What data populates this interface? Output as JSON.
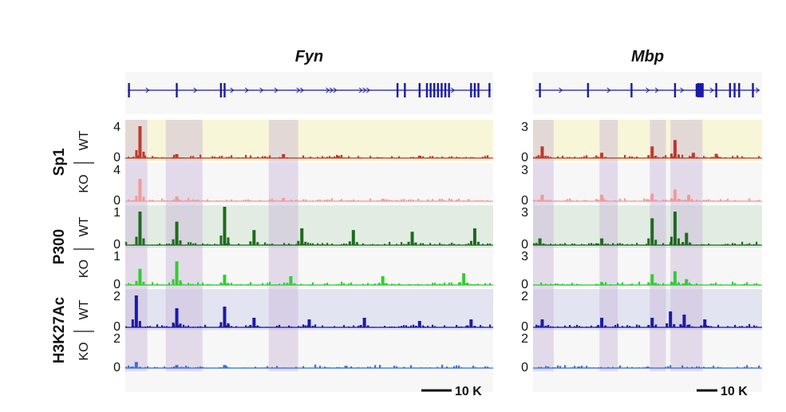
{
  "chart_data": [
    {
      "type": "genome-browser-tracks",
      "title": "Fyn",
      "scale_bar": "10 K",
      "tracks": [
        {
          "group": "Sp1",
          "condition": "WT",
          "ymax": "4",
          "ymin": "0",
          "color": "#c0392b",
          "peaks": [
            [
              0.04,
              4.0
            ],
            [
              0.14,
              0.5
            ],
            [
              0.43,
              0.5
            ],
            [
              0.58,
              0.3
            ],
            [
              0.8,
              0.3
            ]
          ]
        },
        {
          "group": "Sp1",
          "condition": "KO",
          "ymax": "4",
          "ymin": "0",
          "color": "#f19a9a",
          "peaks": [
            [
              0.04,
              2.8
            ],
            [
              0.14,
              0.6
            ],
            [
              0.43,
              0.4
            ],
            [
              0.7,
              0.3
            ]
          ]
        },
        {
          "group": "P300",
          "condition": "WT",
          "ymax": "1",
          "ymin": "0",
          "color": "#1e6b1e",
          "peaks": [
            [
              0.04,
              1.0
            ],
            [
              0.14,
              0.7
            ],
            [
              0.27,
              1.25
            ],
            [
              0.35,
              0.45
            ],
            [
              0.48,
              0.5
            ],
            [
              0.62,
              0.45
            ],
            [
              0.78,
              0.4
            ],
            [
              0.95,
              0.5
            ]
          ]
        },
        {
          "group": "P300",
          "condition": "KO",
          "ymax": "1",
          "ymin": "0",
          "color": "#33cc33",
          "peaks": [
            [
              0.04,
              0.55
            ],
            [
              0.14,
              0.8
            ],
            [
              0.27,
              0.35
            ],
            [
              0.45,
              0.3
            ],
            [
              0.7,
              0.3
            ],
            [
              0.92,
              0.4
            ]
          ]
        },
        {
          "group": "H3K27Ac",
          "condition": "WT",
          "ymax": "2",
          "ymin": "0",
          "color": "#1a1aa6",
          "peaks": [
            [
              0.03,
              2.0
            ],
            [
              0.14,
              1.2
            ],
            [
              0.27,
              1.3
            ],
            [
              0.35,
              0.6
            ],
            [
              0.5,
              0.5
            ],
            [
              0.65,
              0.6
            ],
            [
              0.8,
              0.4
            ],
            [
              0.94,
              0.5
            ]
          ]
        },
        {
          "group": "H3K27Ac",
          "condition": "KO",
          "ymax": "2",
          "ymin": "0",
          "color": "#3a6fd8",
          "peaks": [
            [
              0.03,
              0.4
            ],
            [
              0.14,
              0.2
            ],
            [
              0.27,
              0.2
            ],
            [
              0.6,
              0.15
            ]
          ]
        }
      ],
      "highlights": [
        [
          0.0,
          0.06
        ],
        [
          0.11,
          0.21
        ],
        [
          0.39,
          0.47
        ]
      ]
    },
    {
      "type": "genome-browser-tracks",
      "title": "Mbp",
      "scale_bar": "10 K",
      "tracks": [
        {
          "group": "Sp1",
          "condition": "WT",
          "ymax": "3",
          "ymin": "0",
          "color": "#c0392b",
          "peaks": [
            [
              0.04,
              1.1
            ],
            [
              0.3,
              0.5
            ],
            [
              0.52,
              1.1
            ],
            [
              0.62,
              1.7
            ],
            [
              0.7,
              0.5
            ],
            [
              0.8,
              0.4
            ]
          ]
        },
        {
          "group": "Sp1",
          "condition": "KO",
          "ymax": "3",
          "ymin": "0",
          "color": "#f19a9a",
          "peaks": [
            [
              0.04,
              0.6
            ],
            [
              0.3,
              0.6
            ],
            [
              0.52,
              0.7
            ],
            [
              0.62,
              1.1
            ],
            [
              0.68,
              0.6
            ]
          ]
        },
        {
          "group": "P300",
          "condition": "WT",
          "ymax": "3",
          "ymin": "0",
          "color": "#1e6b1e",
          "peaks": [
            [
              0.03,
              0.6
            ],
            [
              0.3,
              0.6
            ],
            [
              0.52,
              2.4
            ],
            [
              0.62,
              3.0
            ],
            [
              0.67,
              1.1
            ]
          ]
        },
        {
          "group": "P300",
          "condition": "KO",
          "ymax": "3",
          "ymin": "0",
          "color": "#33cc33",
          "peaks": [
            [
              0.3,
              0.3
            ],
            [
              0.52,
              1.1
            ],
            [
              0.62,
              1.4
            ],
            [
              0.67,
              0.6
            ]
          ]
        },
        {
          "group": "H3K27Ac",
          "condition": "WT",
          "ymax": "2",
          "ymin": "0",
          "color": "#1a1aa6",
          "peaks": [
            [
              0.04,
              0.5
            ],
            [
              0.3,
              0.6
            ],
            [
              0.52,
              0.6
            ],
            [
              0.6,
              1.0
            ],
            [
              0.66,
              0.8
            ],
            [
              0.75,
              0.5
            ]
          ]
        },
        {
          "group": "H3K27Ac",
          "condition": "KO",
          "ymax": "2",
          "ymin": "0",
          "color": "#3a6fd8",
          "peaks": [
            [
              0.2,
              0.1
            ],
            [
              0.5,
              0.1
            ]
          ]
        }
      ],
      "highlights": [
        [
          0.0,
          0.09
        ],
        [
          0.29,
          0.37
        ],
        [
          0.51,
          0.58
        ],
        [
          0.6,
          0.74
        ]
      ]
    }
  ],
  "colors": {
    "Sp1_bg": "#f8f6d8",
    "P300_bg": "#e2ece3",
    "H3K27Ac_bg": "#e2e4f1",
    "ko_bg": "#f7f7f7",
    "highlight": "#c8b6d6",
    "gene": "#1a1aa6"
  }
}
